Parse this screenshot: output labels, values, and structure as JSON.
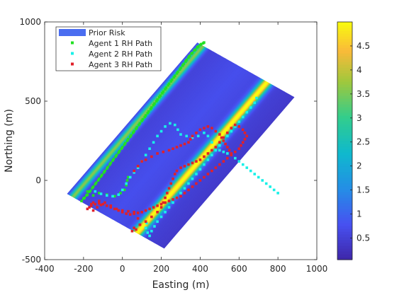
{
  "chart_data": {
    "type": "scatter",
    "xlabel": "Easting (m)",
    "ylabel": "Northing (m)",
    "xlim": [
      -400,
      1000
    ],
    "ylim": [
      -500,
      1000
    ],
    "xticks": [
      "-400",
      "-200",
      "0",
      "200",
      "400",
      "600",
      "800",
      "1000"
    ],
    "yticks": [
      "-500",
      "0",
      "500",
      "1000"
    ],
    "x_tick_values": [
      -400,
      -200,
      0,
      200,
      400,
      600,
      800,
      1000
    ],
    "y_tick_values": [
      -500,
      0,
      500,
      1000
    ],
    "colorbar": {
      "colormap": "parula",
      "min": 0.05,
      "max": 5,
      "ticks": [
        "0.5",
        "1",
        "1.5",
        "2",
        "2.5",
        "3",
        "3.5",
        "4",
        "4.5"
      ],
      "tick_values": [
        0.5,
        1,
        1.5,
        2,
        2.5,
        3,
        3.5,
        4,
        4.5
      ]
    },
    "risk_region": {
      "name": "Prior Risk",
      "color": "#4a6df0",
      "corners": [
        [
          -285,
          -85
        ],
        [
          215,
          -430
        ],
        [
          835,
          590
        ],
        [
          385,
          870
        ]
      ],
      "ridges": [
        {
          "offset": 0.06,
          "width": 0.035,
          "peak": 3.1
        },
        {
          "offset": 0.72,
          "width": 0.045,
          "peak": 4.6
        }
      ]
    },
    "legend": {
      "location": "top-left",
      "entries": [
        {
          "label": "Prior Risk",
          "color": "#4a6df0",
          "kind": "patch"
        },
        {
          "label": "Agent 1 RH Path",
          "color": "#22e022",
          "kind": "marker"
        },
        {
          "label": "Agent 2 RH Path",
          "color": "#19f0e8",
          "kind": "marker"
        },
        {
          "label": "Agent 3 RH Path",
          "color": "#e0202a",
          "kind": "marker"
        }
      ]
    },
    "series": [
      {
        "name": "Agent 1 RH Path",
        "color": "#22e022",
        "points": [
          [
            -210,
            -130
          ],
          [
            -195,
            -110
          ],
          [
            -180,
            -90
          ],
          [
            -165,
            -65
          ],
          [
            -150,
            -40
          ],
          [
            -135,
            -15
          ],
          [
            -120,
            10
          ],
          [
            -105,
            35
          ],
          [
            -90,
            60
          ],
          [
            -75,
            85
          ],
          [
            -60,
            110
          ],
          [
            -45,
            135
          ],
          [
            -30,
            160
          ],
          [
            -15,
            185
          ],
          [
            0,
            210
          ],
          [
            15,
            235
          ],
          [
            30,
            260
          ],
          [
            45,
            285
          ],
          [
            60,
            310
          ],
          [
            75,
            335
          ],
          [
            90,
            360
          ],
          [
            105,
            385
          ],
          [
            120,
            410
          ],
          [
            135,
            435
          ],
          [
            150,
            460
          ],
          [
            165,
            485
          ],
          [
            180,
            510
          ],
          [
            195,
            535
          ],
          [
            210,
            560
          ],
          [
            225,
            585
          ],
          [
            240,
            610
          ],
          [
            255,
            635
          ],
          [
            270,
            660
          ],
          [
            285,
            685
          ],
          [
            300,
            710
          ],
          [
            315,
            735
          ],
          [
            330,
            760
          ],
          [
            345,
            785
          ],
          [
            360,
            805
          ],
          [
            375,
            825
          ],
          [
            390,
            845
          ],
          [
            405,
            860
          ],
          [
            420,
            870
          ],
          [
            -200,
            -115
          ],
          [
            -185,
            -95
          ],
          [
            -170,
            -72
          ],
          [
            -155,
            -48
          ],
          [
            -140,
            -24
          ],
          [
            -125,
            0
          ],
          [
            -110,
            25
          ],
          [
            -95,
            50
          ],
          [
            -80,
            75
          ],
          [
            -65,
            100
          ],
          [
            -50,
            125
          ],
          [
            -35,
            150
          ],
          [
            -20,
            175
          ],
          [
            -5,
            200
          ],
          [
            10,
            225
          ],
          [
            25,
            250
          ],
          [
            40,
            275
          ],
          [
            55,
            300
          ],
          [
            70,
            325
          ],
          [
            85,
            350
          ],
          [
            100,
            375
          ],
          [
            115,
            400
          ],
          [
            130,
            425
          ],
          [
            145,
            450
          ],
          [
            160,
            475
          ],
          [
            175,
            500
          ],
          [
            190,
            525
          ],
          [
            205,
            550
          ],
          [
            220,
            575
          ],
          [
            235,
            600
          ],
          [
            250,
            625
          ],
          [
            265,
            650
          ],
          [
            280,
            675
          ],
          [
            295,
            700
          ],
          [
            310,
            725
          ],
          [
            325,
            750
          ],
          [
            340,
            775
          ],
          [
            355,
            800
          ],
          [
            370,
            820
          ],
          [
            385,
            840
          ],
          [
            400,
            855
          ],
          [
            415,
            865
          ],
          [
            -180,
            -70
          ],
          [
            -150,
            -95
          ],
          [
            -120,
            -80
          ],
          [
            -80,
            -90
          ],
          [
            -40,
            -100
          ],
          [
            -10,
            -80
          ],
          [
            10,
            -60
          ],
          [
            20,
            -30
          ],
          [
            25,
            0
          ],
          [
            30,
            20
          ]
        ]
      },
      {
        "name": "Agent 2 RH Path",
        "color": "#19f0e8",
        "points": [
          [
            -140,
            -70
          ],
          [
            -110,
            -85
          ],
          [
            -80,
            -95
          ],
          [
            -50,
            -100
          ],
          [
            -20,
            -90
          ],
          [
            0,
            -60
          ],
          [
            20,
            -20
          ],
          [
            40,
            20
          ],
          [
            60,
            50
          ],
          [
            80,
            80
          ],
          [
            100,
            120
          ],
          [
            120,
            160
          ],
          [
            140,
            200
          ],
          [
            160,
            240
          ],
          [
            180,
            280
          ],
          [
            200,
            310
          ],
          [
            220,
            340
          ],
          [
            245,
            360
          ],
          [
            270,
            350
          ],
          [
            285,
            320
          ],
          [
            300,
            290
          ],
          [
            330,
            280
          ],
          [
            360,
            270
          ],
          [
            390,
            280
          ],
          [
            420,
            300
          ],
          [
            440,
            280
          ],
          [
            460,
            240
          ],
          [
            480,
            210
          ],
          [
            500,
            190
          ],
          [
            520,
            180
          ],
          [
            540,
            170
          ],
          [
            560,
            160
          ],
          [
            580,
            140
          ],
          [
            600,
            120
          ],
          [
            620,
            100
          ],
          [
            640,
            80
          ],
          [
            660,
            60
          ],
          [
            680,
            40
          ],
          [
            700,
            20
          ],
          [
            720,
            0
          ],
          [
            740,
            -20
          ],
          [
            760,
            -40
          ],
          [
            780,
            -60
          ],
          [
            800,
            -80
          ],
          [
            140,
            -350
          ],
          [
            150,
            -320
          ],
          [
            165,
            -290
          ],
          [
            180,
            -260
          ],
          [
            200,
            -230
          ],
          [
            220,
            -200
          ],
          [
            240,
            -170
          ],
          [
            260,
            -140
          ],
          [
            280,
            -110
          ],
          [
            300,
            -80
          ],
          [
            320,
            -50
          ],
          [
            340,
            -20
          ],
          [
            360,
            10
          ],
          [
            380,
            40
          ],
          [
            400,
            70
          ],
          [
            420,
            100
          ],
          [
            440,
            130
          ],
          [
            460,
            160
          ],
          [
            480,
            190
          ],
          [
            500,
            220
          ],
          [
            520,
            250
          ],
          [
            540,
            280
          ],
          [
            560,
            310
          ],
          [
            580,
            340
          ],
          [
            600,
            370
          ],
          [
            620,
            400
          ],
          [
            640,
            430
          ],
          [
            660,
            460
          ],
          [
            680,
            490
          ],
          [
            690,
            520
          ],
          [
            130,
            -330
          ],
          [
            120,
            -300
          ],
          [
            125,
            -270
          ]
        ]
      },
      {
        "name": "Agent 3 RH Path",
        "color": "#e0202a",
        "points": [
          [
            -170,
            -170
          ],
          [
            -150,
            -140
          ],
          [
            -120,
            -130
          ],
          [
            -90,
            -140
          ],
          [
            -60,
            -160
          ],
          [
            -30,
            -180
          ],
          [
            0,
            -190
          ],
          [
            30,
            -195
          ],
          [
            60,
            -200
          ],
          [
            80,
            -240
          ],
          [
            90,
            -280
          ],
          [
            70,
            -310
          ],
          [
            50,
            -320
          ],
          [
            60,
            -300
          ],
          [
            90,
            -280
          ],
          [
            120,
            -260
          ],
          [
            150,
            -230
          ],
          [
            180,
            -200
          ],
          [
            200,
            -170
          ],
          [
            210,
            -140
          ],
          [
            220,
            -110
          ],
          [
            230,
            -80
          ],
          [
            240,
            -50
          ],
          [
            250,
            -20
          ],
          [
            260,
            10
          ],
          [
            270,
            40
          ],
          [
            280,
            60
          ],
          [
            300,
            80
          ],
          [
            320,
            90
          ],
          [
            340,
            100
          ],
          [
            360,
            110
          ],
          [
            380,
            120
          ],
          [
            400,
            130
          ],
          [
            420,
            150
          ],
          [
            440,
            170
          ],
          [
            460,
            190
          ],
          [
            480,
            210
          ],
          [
            500,
            240
          ],
          [
            520,
            270
          ],
          [
            540,
            300
          ],
          [
            560,
            330
          ],
          [
            580,
            350
          ],
          [
            600,
            340
          ],
          [
            620,
            320
          ],
          [
            630,
            300
          ],
          [
            640,
            280
          ],
          [
            630,
            260
          ],
          [
            620,
            240
          ],
          [
            610,
            220
          ],
          [
            600,
            200
          ],
          [
            580,
            180
          ],
          [
            560,
            160
          ],
          [
            540,
            140
          ],
          [
            520,
            120
          ],
          [
            500,
            100
          ],
          [
            480,
            80
          ],
          [
            460,
            60
          ],
          [
            440,
            40
          ],
          [
            420,
            20
          ],
          [
            400,
            0
          ],
          [
            380,
            -20
          ],
          [
            360,
            -40
          ],
          [
            340,
            -60
          ],
          [
            320,
            -80
          ],
          [
            300,
            -100
          ],
          [
            280,
            -110
          ],
          [
            260,
            -120
          ],
          [
            240,
            -130
          ],
          [
            220,
            -140
          ],
          [
            200,
            -150
          ],
          [
            180,
            -160
          ],
          [
            160,
            -170
          ],
          [
            140,
            -180
          ],
          [
            120,
            -190
          ],
          [
            100,
            -200
          ],
          [
            80,
            -205
          ],
          [
            60,
            -210
          ],
          [
            40,
            -215
          ],
          [
            20,
            -210
          ],
          [
            0,
            -200
          ],
          [
            -20,
            -190
          ],
          [
            -40,
            -180
          ],
          [
            -60,
            -170
          ],
          [
            -80,
            -160
          ],
          [
            -100,
            -150
          ],
          [
            -120,
            -145
          ],
          [
            -140,
            -150
          ],
          [
            -160,
            -160
          ],
          [
            -180,
            -180
          ],
          [
            -150,
            -190
          ],
          [
            -130,
            -170
          ],
          [
            -110,
            -155
          ],
          [
            -160,
            -150
          ],
          [
            60,
            60
          ],
          [
            80,
            90
          ],
          [
            100,
            120
          ],
          [
            120,
            130
          ],
          [
            150,
            150
          ],
          [
            180,
            170
          ],
          [
            210,
            180
          ],
          [
            240,
            190
          ],
          [
            260,
            200
          ],
          [
            280,
            210
          ],
          [
            300,
            220
          ],
          [
            320,
            230
          ],
          [
            340,
            240
          ],
          [
            350,
            260
          ],
          [
            360,
            280
          ],
          [
            380,
            300
          ],
          [
            400,
            320
          ],
          [
            420,
            330
          ],
          [
            440,
            340
          ],
          [
            460,
            330
          ],
          [
            480,
            310
          ],
          [
            500,
            290
          ],
          [
            510,
            270
          ],
          [
            520,
            250
          ],
          [
            530,
            230
          ],
          [
            540,
            210
          ],
          [
            550,
            190
          ],
          [
            560,
            170
          ]
        ]
      }
    ]
  }
}
